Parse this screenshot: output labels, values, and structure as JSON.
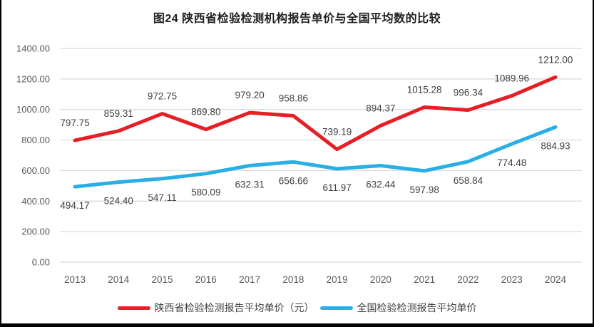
{
  "page": {
    "title": "图24 陕西省检验检测机构报告单价与全国平均数的比较"
  },
  "chart_data": {
    "type": "line",
    "title": "图24 陕西省检验检测机构报告单价与全国平均数的比较",
    "categories": [
      "2013",
      "2014",
      "2015",
      "2016",
      "2017",
      "2018",
      "2019",
      "2020",
      "2021",
      "2022",
      "2023",
      "2024"
    ],
    "series": [
      {
        "name": "陕西省检验检测报告平均单价（元）",
        "color": "#e61e25",
        "label_position": "above",
        "values": [
          797.75,
          859.31,
          972.75,
          869.8,
          979.2,
          958.86,
          739.19,
          894.37,
          1015.28,
          996.34,
          1089.96,
          1212.0
        ]
      },
      {
        "name": "全国检验检测报告平均单价",
        "color": "#29aee6",
        "label_position": "below",
        "values": [
          494.17,
          524.4,
          547.11,
          580.09,
          632.31,
          656.66,
          611.97,
          632.44,
          597.98,
          658.84,
          774.48,
          884.93
        ]
      }
    ],
    "ylim": [
      0,
      1400
    ],
    "ytick_step": 200,
    "ytick_labels": [
      "0.00",
      "200.00",
      "400.00",
      "600.00",
      "800.00",
      "1000.00",
      "1200.00",
      "1400.00"
    ],
    "grid": true,
    "legend_position": "bottom",
    "xlabel": "",
    "ylabel": ""
  },
  "style": {
    "gridline_color": "#d9d9d9",
    "axis_text_color": "#595959",
    "data_label_color": "#404040",
    "title_color": "#1f1f1f",
    "frame_color": "#000000"
  }
}
